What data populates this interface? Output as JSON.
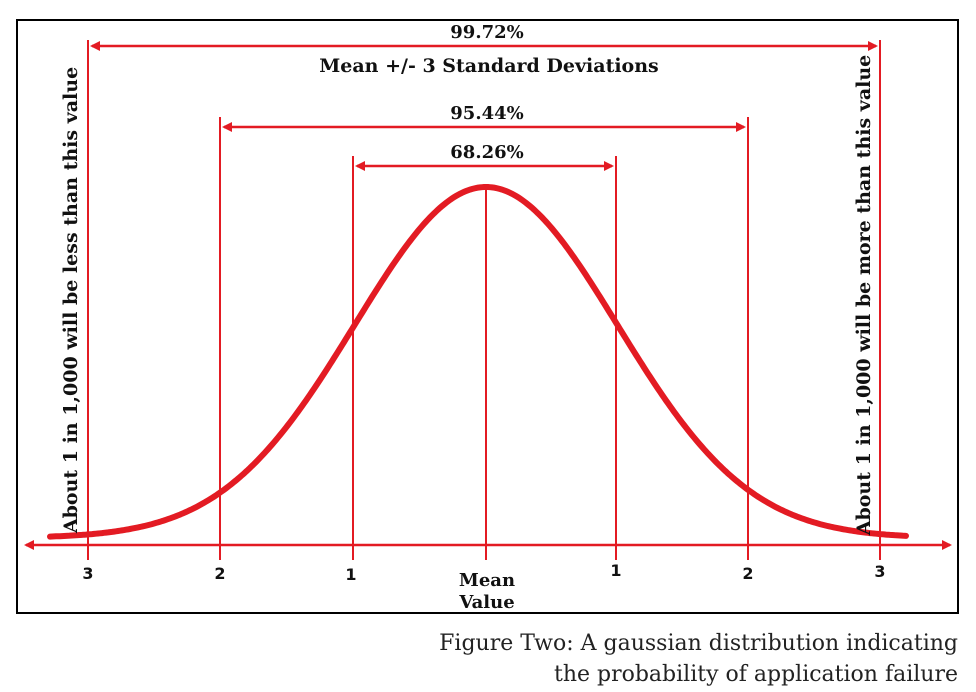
{
  "percentages": {
    "three_sigma": "99.72%",
    "two_sigma": "95.44%",
    "one_sigma": "68.26%"
  },
  "range_label": "Mean +/- 3 Standard Deviations",
  "side_notes": {
    "left": "About 1 in 1,000 will be less than this value",
    "right": "About 1 in 1,000 will be more than this value"
  },
  "axis": {
    "ticks": [
      "3",
      "2",
      "1",
      "1",
      "2",
      "3"
    ],
    "mean_label_line1": "Mean",
    "mean_label_line2": "Value"
  },
  "caption": {
    "line1": "Figure Two: A gaussian distribution indicating",
    "line2": "the probability of application failure"
  },
  "colors": {
    "accent": "#e31b23",
    "text": "#111111",
    "frame": "#000000"
  }
}
